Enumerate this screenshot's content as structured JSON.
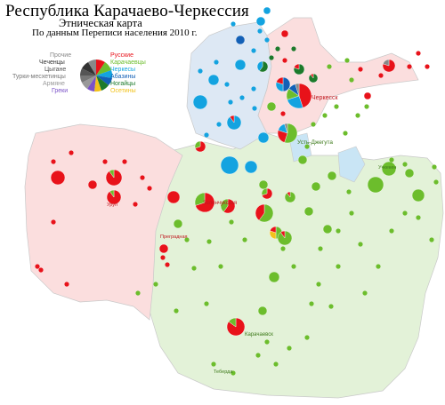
{
  "title": "Республика Карачаево-Черкессия",
  "subtitle": "Этническая карта",
  "subtitle2": "По данным Переписи населения 2010 г.",
  "legend": {
    "left": [
      {
        "label": "Прочие",
        "color": "#888888"
      },
      {
        "label": "Чеченцы",
        "color": "#333333"
      },
      {
        "label": "Цыгане",
        "color": "#555555"
      },
      {
        "label": "Турки-месхетинцы",
        "color": "#777777"
      },
      {
        "label": "Армяне",
        "color": "#999999"
      },
      {
        "label": "Греки",
        "color": "#7b52c8"
      }
    ],
    "right": [
      {
        "label": "Русские",
        "color": "#e8121a"
      },
      {
        "label": "Карачаевцы",
        "color": "#6cbd2c"
      },
      {
        "label": "Черкесы",
        "color": "#13a3e0"
      },
      {
        "label": "Абазины",
        "color": "#1360b6"
      },
      {
        "label": "Ногайцы",
        "color": "#1c7a2b"
      },
      {
        "label": "Осетины",
        "color": "#f2c21b"
      }
    ]
  },
  "colors": {
    "russian": "#e8121a",
    "karachay": "#6cbd2c",
    "circassian": "#13a3e0",
    "abazin": "#1360b6",
    "nogai": "#1c7a2b",
    "ossetian": "#f2c21b",
    "other": "#888888"
  },
  "labels": {
    "cherkessk": "Черкесск",
    "ust_dzheguta": "Усть-Джегута",
    "zelenchukskaya": "Зеленчукская",
    "karachaevsk": "Карачаевск",
    "teberda": "Теберда",
    "uchkeken": "Учкекен",
    "urup": "Уруп",
    "pregradnaya": "Преградная"
  }
}
